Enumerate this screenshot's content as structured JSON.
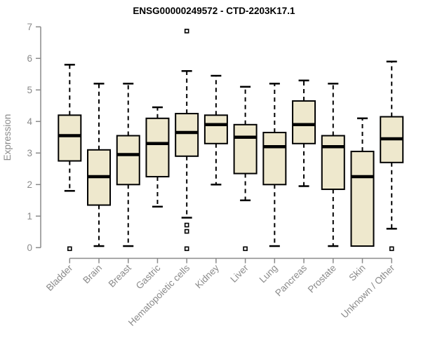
{
  "chart_data": {
    "type": "boxplot",
    "title": "ENSG00000249572 - CTD-2203K17.1",
    "ylabel": "Expression",
    "xlabel": "",
    "ylim": [
      0,
      7
    ],
    "yticks": [
      0,
      1,
      2,
      3,
      4,
      5,
      6,
      7
    ],
    "grid": false,
    "legend": "none",
    "categories": [
      "Bladder",
      "Brain",
      "Breast",
      "Gastric",
      "Hematopoietic cells",
      "Kidney",
      "Liver",
      "Lung",
      "Pancreas",
      "Prostate",
      "Skin",
      "Unknown / Other"
    ],
    "series": [
      {
        "name": "Bladder",
        "low": 1.8,
        "q1": 2.75,
        "median": 3.55,
        "q3": 4.2,
        "high": 5.8,
        "outliers": [
          0
        ]
      },
      {
        "name": "Brain",
        "low": 0.05,
        "q1": 1.35,
        "median": 2.25,
        "q3": 3.1,
        "high": 5.2,
        "outliers": []
      },
      {
        "name": "Breast",
        "low": 0.05,
        "q1": 2.0,
        "median": 2.95,
        "q3": 3.55,
        "high": 5.2,
        "outliers": []
      },
      {
        "name": "Gastric",
        "low": 1.3,
        "q1": 2.25,
        "median": 3.3,
        "q3": 4.1,
        "high": 4.45,
        "outliers": []
      },
      {
        "name": "Hematopoietic cells",
        "low": 0.95,
        "q1": 2.9,
        "median": 3.65,
        "q3": 4.25,
        "high": 5.6,
        "outliers": [
          6.9,
          0.75,
          0.55,
          0
        ]
      },
      {
        "name": "Kidney",
        "low": 2.0,
        "q1": 3.3,
        "median": 3.9,
        "q3": 4.2,
        "high": 5.45,
        "outliers": []
      },
      {
        "name": "Liver",
        "low": 1.5,
        "q1": 2.35,
        "median": 3.5,
        "q3": 3.9,
        "high": 5.1,
        "outliers": [
          0
        ]
      },
      {
        "name": "Lung",
        "low": 0.05,
        "q1": 2.0,
        "median": 3.2,
        "q3": 3.65,
        "high": 5.2,
        "outliers": []
      },
      {
        "name": "Pancreas",
        "low": 1.95,
        "q1": 3.3,
        "median": 3.9,
        "q3": 4.65,
        "high": 5.3,
        "outliers": []
      },
      {
        "name": "Prostate",
        "low": 0.05,
        "q1": 1.85,
        "median": 3.2,
        "q3": 3.55,
        "high": 5.2,
        "outliers": []
      },
      {
        "name": "Skin",
        "low": 0.05,
        "q1": 0.05,
        "median": 2.25,
        "q3": 3.05,
        "high": 4.1,
        "outliers": []
      },
      {
        "name": "Unknown / Other",
        "low": 0.6,
        "q1": 2.7,
        "median": 3.45,
        "q3": 4.15,
        "high": 5.9,
        "outliers": [
          0
        ]
      }
    ]
  },
  "colors": {
    "box_fill": "#EEE8CD",
    "box_border": "#000000",
    "median": "#000000",
    "whisker": "#000000",
    "axis": "#8a8a8a",
    "tick_text": "#8a8a8a",
    "title_text": "#000000",
    "background": "#ffffff"
  }
}
